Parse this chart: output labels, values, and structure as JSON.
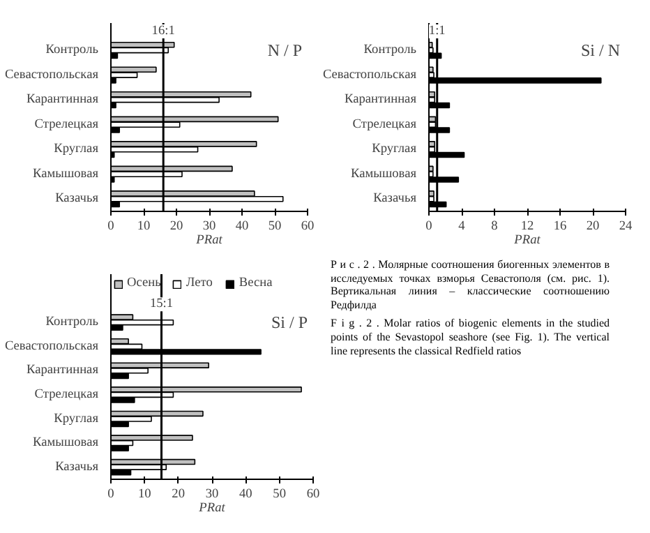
{
  "chart_data": [
    {
      "type": "bar",
      "orientation": "horizontal",
      "title": "N / P",
      "xlabel": "PRat",
      "categories": [
        "Контроль",
        "Севастопольская",
        "Карантинная",
        "Стрелецкая",
        "Круглая",
        "Камышовая",
        "Казачья"
      ],
      "xlim": [
        0,
        60
      ],
      "xticks": [
        0,
        10,
        20,
        30,
        40,
        50,
        60
      ],
      "ref_lines": [
        {
          "axis": "x",
          "value": 16,
          "label": "16:1"
        }
      ],
      "series": [
        {
          "color": "#c0c0c0",
          "values": [
            19.3,
            13.8,
            42.7,
            51,
            44.4,
            37,
            43.8
          ]
        },
        {
          "color": "#ffffff",
          "values": [
            17.5,
            8,
            33,
            21,
            26.5,
            21.7,
            52.5
          ]
        },
        {
          "color": "#000000",
          "values": [
            2,
            1.5,
            1.5,
            2.6,
            1,
            1,
            2.6
          ]
        }
      ]
    },
    {
      "type": "bar",
      "orientation": "horizontal",
      "title": "Si / N",
      "xlabel": "PRat",
      "categories": [
        "Контроль",
        "Севастопольская",
        "Карантинная",
        "Стрелецкая",
        "Круглая",
        "Камышовая",
        "Казачья"
      ],
      "xlim": [
        0,
        24
      ],
      "xticks": [
        0,
        4,
        8,
        12,
        16,
        20,
        24
      ],
      "ref_lines": [
        {
          "axis": "x",
          "value": 1,
          "label": "1:1"
        }
      ],
      "series": [
        {
          "color": "#c0c0c0",
          "values": [
            0.4,
            0.5,
            0.7,
            0.8,
            0.7,
            0.5,
            0.6
          ]
        },
        {
          "color": "#ffffff",
          "values": [
            0.5,
            0.6,
            0.7,
            0.8,
            0.7,
            0.5,
            0.6
          ]
        },
        {
          "color": "#000000",
          "values": [
            1.5,
            21,
            2.5,
            2.5,
            4.3,
            3.6,
            2.1
          ]
        }
      ]
    },
    {
      "type": "bar",
      "orientation": "horizontal",
      "title": "Si / P",
      "xlabel": "PRat",
      "categories": [
        "Контроль",
        "Севастопольская",
        "Карантинная",
        "Стрелецкая",
        "Круглая",
        "Камышовая",
        "Казачья"
      ],
      "xlim": [
        0,
        60
      ],
      "xticks": [
        0,
        10,
        20,
        30,
        40,
        50,
        60
      ],
      "legend": "top",
      "ref_lines": [
        {
          "axis": "x",
          "value": 15,
          "label": "15:1"
        }
      ],
      "series": [
        {
          "name": "Осень",
          "color": "#c0c0c0",
          "values": [
            6.5,
            5.2,
            29,
            56.5,
            27.3,
            24.2,
            24.9
          ]
        },
        {
          "name": "Лето",
          "color": "#ffffff",
          "values": [
            18.5,
            9.2,
            11,
            18.5,
            12,
            6.5,
            16.4
          ]
        },
        {
          "name": "Весна",
          "color": "#000000",
          "values": [
            3.5,
            44.5,
            5.2,
            7,
            5.2,
            5.2,
            5.9
          ]
        }
      ]
    },
    {
      "type": "other",
      "annotations": [
        "Р и с . 2 . Молярные соотношения биогенных элементов в исследуемых точках взморья Севастополя (см. рис. 1). Вертикальная линия – классические соотношению Редфилда",
        "F i g . 2 . Molar ratios of biogenic elements in the studied points of the Sevastopol seashore (see Fig. 1). The vertical line represents the classical Redfield ratios"
      ]
    }
  ]
}
